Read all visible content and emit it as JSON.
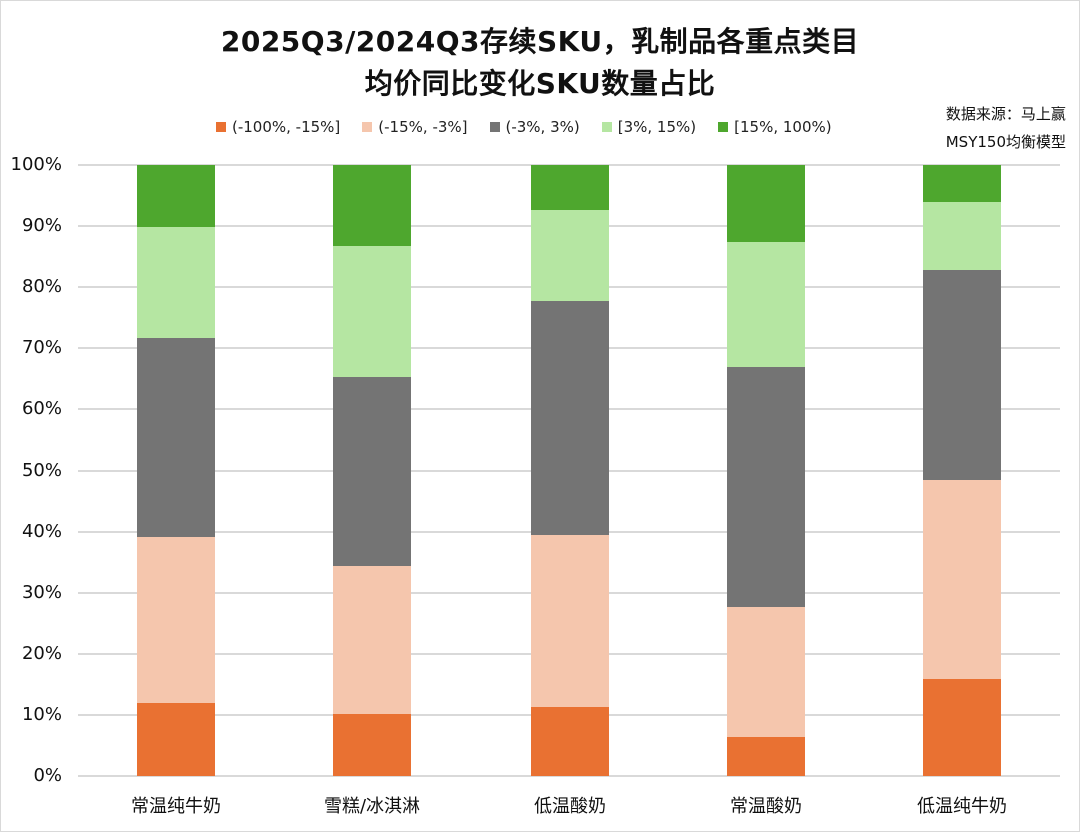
{
  "title": {
    "line1": "2025Q3/2024Q3存续SKU，乳制品各重点类目",
    "line2": "均价同比变化SKU数量占比"
  },
  "source": {
    "line1": "数据来源：马上赢",
    "line2": "MSY150均衡模型"
  },
  "legend": [
    {
      "label": "(-100%, -15%]",
      "color": "#E97132"
    },
    {
      "label": "(-15%, -3%]",
      "color": "#F5C6AD"
    },
    {
      "label": "(-3%, 3%)",
      "color": "#747474"
    },
    {
      "label": "[3%, 15%)",
      "color": "#B5E6A2"
    },
    {
      "label": "[15%, 100%)",
      "color": "#4EA72E"
    }
  ],
  "yticks": [
    "100%",
    "90%",
    "80%",
    "70%",
    "60%",
    "50%",
    "40%",
    "30%",
    "20%",
    "10%",
    "0%"
  ],
  "chart_data": {
    "type": "bar",
    "stacked": true,
    "percent_stacked": true,
    "title": "2025Q3/2024Q3存续SKU，乳制品各重点类目均价同比变化SKU数量占比",
    "xlabel": "",
    "ylabel": "",
    "ylim": [
      0,
      100
    ],
    "yticks": [
      "0%",
      "10%",
      "20%",
      "30%",
      "40%",
      "50%",
      "60%",
      "70%",
      "80%",
      "90%",
      "100%"
    ],
    "grid": true,
    "legend_position": "top",
    "categories": [
      "常温纯牛奶",
      "雪糕/冰淇淋",
      "低温酸奶",
      "常温酸奶",
      "低温纯牛奶"
    ],
    "series": [
      {
        "name": "(-100%, -15%]",
        "color": "#E97132",
        "values": [
          11.9,
          10.1,
          11.3,
          6.4,
          15.9
        ]
      },
      {
        "name": "(-15%, -3%]",
        "color": "#F5C6AD",
        "values": [
          27.2,
          24.3,
          28.1,
          21.3,
          32.5
        ]
      },
      {
        "name": "(-3%, 3%)",
        "color": "#747474",
        "values": [
          32.6,
          30.9,
          38.3,
          39.2,
          34.4
        ]
      },
      {
        "name": "[3%, 15%)",
        "color": "#B5E6A2",
        "values": [
          18.2,
          21.4,
          14.9,
          20.5,
          11.2
        ]
      },
      {
        "name": "[15%, 100%)",
        "color": "#4EA72E",
        "values": [
          10.1,
          13.3,
          7.4,
          12.6,
          6.0
        ]
      }
    ],
    "annotations": [
      "数据来源：马上赢",
      "MSY150均衡模型"
    ]
  }
}
